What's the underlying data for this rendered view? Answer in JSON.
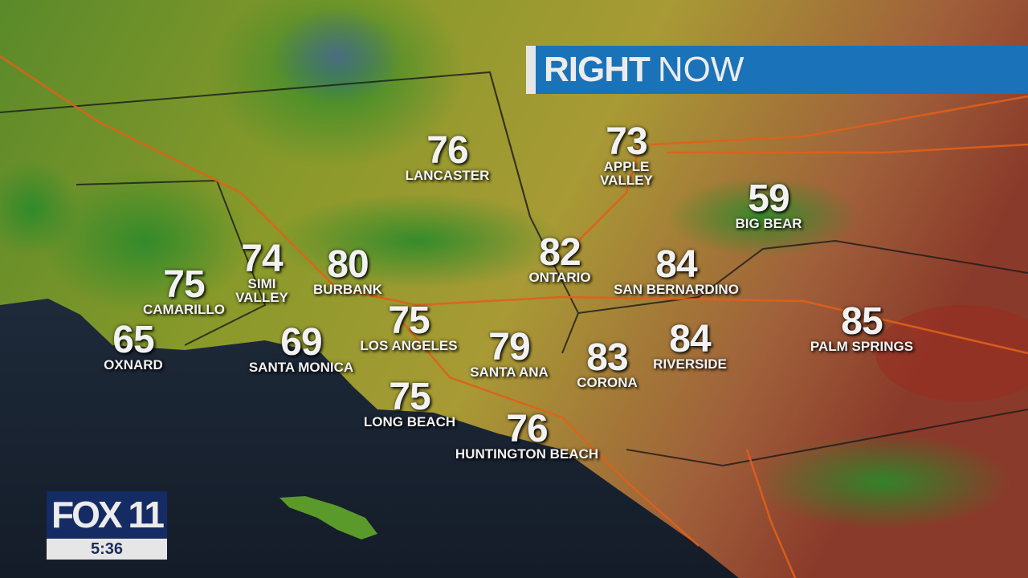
{
  "banner": {
    "bold": "RIGHT",
    "regular": "NOW",
    "color": "#1a73b8"
  },
  "logo": {
    "brand": "FOX 11",
    "time": "5:36",
    "color": "#152b64"
  },
  "cities": [
    {
      "name": "LANCASTER",
      "temp": "76"
    },
    {
      "name": "APPLE VALLEY",
      "line1": "APPLE",
      "line2": "VALLEY",
      "temp": "73"
    },
    {
      "name": "BIG BEAR",
      "temp": "59"
    },
    {
      "name": "SIMI VALLEY",
      "line1": "SIMI",
      "line2": "VALLEY",
      "temp": "74"
    },
    {
      "name": "CAMARILLO",
      "temp": "75"
    },
    {
      "name": "BURBANK",
      "temp": "80"
    },
    {
      "name": "ONTARIO",
      "temp": "82"
    },
    {
      "name": "SAN BERNARDINO",
      "temp": "84"
    },
    {
      "name": "OXNARD",
      "temp": "65"
    },
    {
      "name": "SANTA MONICA",
      "temp": "69"
    },
    {
      "name": "LOS ANGELES",
      "temp": "75"
    },
    {
      "name": "SANTA ANA",
      "temp": "79"
    },
    {
      "name": "CORONA",
      "temp": "83"
    },
    {
      "name": "RIVERSIDE",
      "temp": "84"
    },
    {
      "name": "PALM SPRINGS",
      "temp": "85"
    },
    {
      "name": "LONG BEACH",
      "temp": "75"
    },
    {
      "name": "HUNTINGTON BEACH",
      "temp": "76"
    }
  ]
}
